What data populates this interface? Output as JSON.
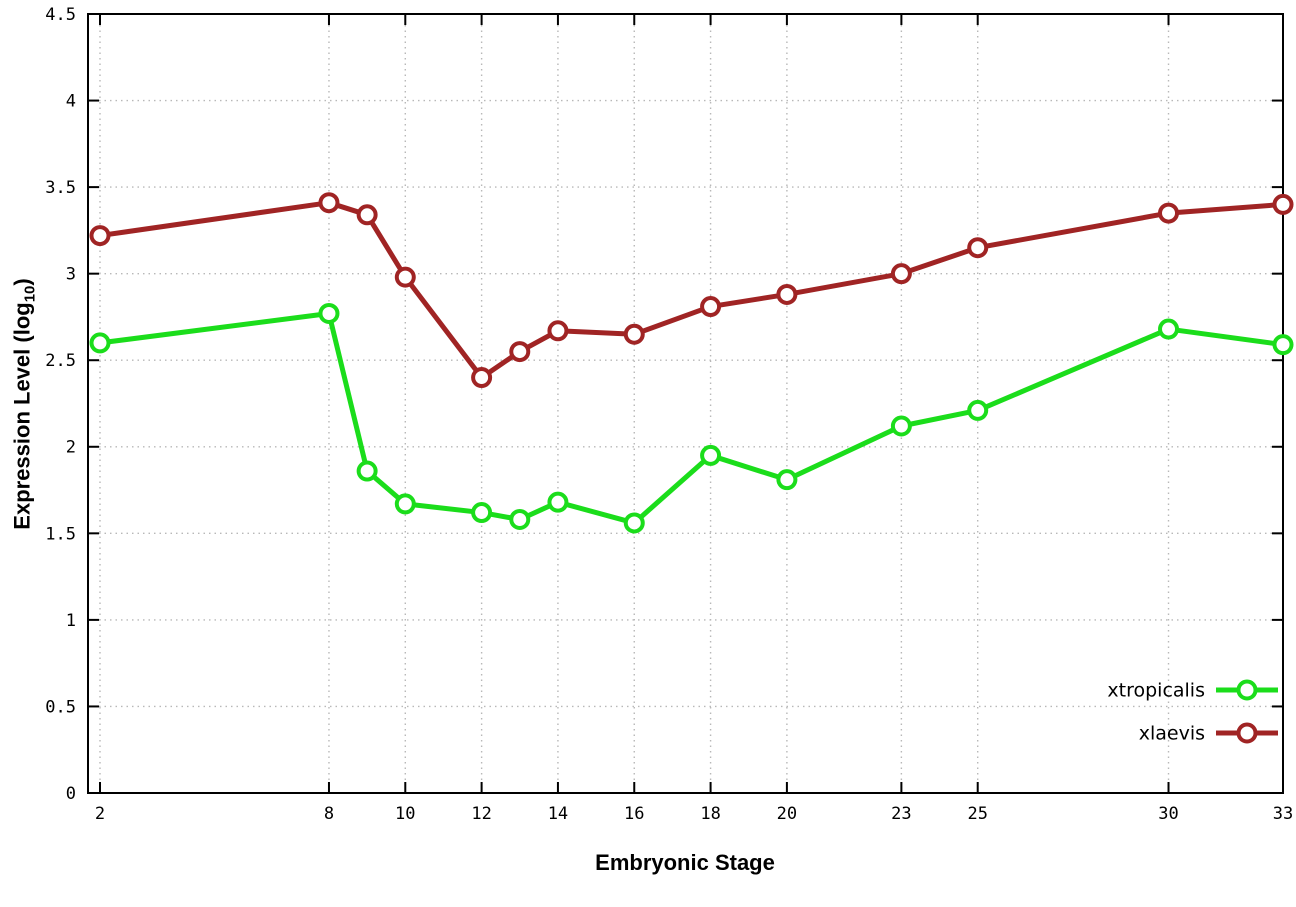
{
  "chart_data": {
    "type": "line",
    "title": "",
    "xlabel": "Embryonic Stage",
    "ylabel": "Expression Level (log10)",
    "ylabel_prefix": "Expression Level (log",
    "ylabel_sub": "10",
    "ylabel_suffix": ")",
    "xlim": [
      2,
      33
    ],
    "ylim": [
      0,
      4.5
    ],
    "xticks": [
      2,
      8,
      10,
      12,
      14,
      16,
      18,
      20,
      23,
      25,
      30,
      33
    ],
    "yticks": [
      0,
      0.5,
      1,
      1.5,
      2,
      2.5,
      3,
      3.5,
      4,
      4.5
    ],
    "grid": true,
    "legend_position": "bottom-right",
    "x": [
      2,
      8,
      9,
      10,
      12,
      13,
      14,
      16,
      18,
      20,
      23,
      25,
      30,
      33
    ],
    "series": [
      {
        "name": "xtropicalis",
        "color": "#1bdd1b",
        "values": [
          2.6,
          2.77,
          1.86,
          1.67,
          1.62,
          1.58,
          1.68,
          1.56,
          1.95,
          1.81,
          2.12,
          2.21,
          2.68,
          2.59
        ]
      },
      {
        "name": "xlaevis",
        "color": "#a02424",
        "values": [
          3.22,
          3.41,
          3.34,
          2.98,
          2.4,
          2.55,
          2.67,
          2.65,
          2.81,
          2.88,
          3.0,
          3.15,
          3.35,
          3.4
        ]
      }
    ],
    "colors": {
      "grid": "#b8b8b8",
      "border": "#000000",
      "text": "#000000",
      "marker_fill": "#ffffff"
    }
  }
}
